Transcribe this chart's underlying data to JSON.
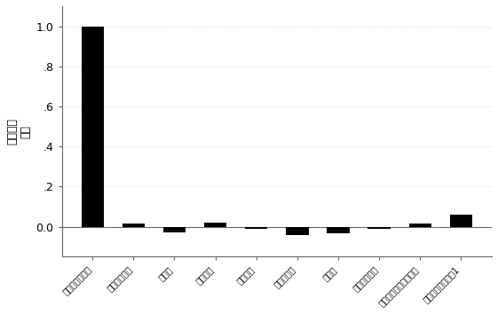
{
  "categories": [
    "血小板生长因子",
    "牛血清白蛋白",
    "派糖酶",
    "肌红蛋白",
    "血红蛋白",
    "乳酸脱氢酶",
    "凝血酶",
    "表皮生长因子",
    "碌性成红细胞生长因子",
    "腱岛素样生长因字1"
  ],
  "values": [
    1.0,
    0.015,
    -0.03,
    0.02,
    -0.01,
    -0.04,
    -0.035,
    -0.01,
    0.015,
    0.06
  ],
  "bar_color": "#000000",
  "ylabel": "相对荧光\n变化",
  "ylim": [
    -0.15,
    1.1
  ],
  "yticks": [
    0.0,
    0.2,
    0.4,
    0.6,
    0.8,
    1.0
  ],
  "background_color": "#ffffff",
  "dotted_bg_color": "#f0f0f0",
  "hline_y": 0.0,
  "hline_color": "#666666",
  "spine_color": "#666666"
}
